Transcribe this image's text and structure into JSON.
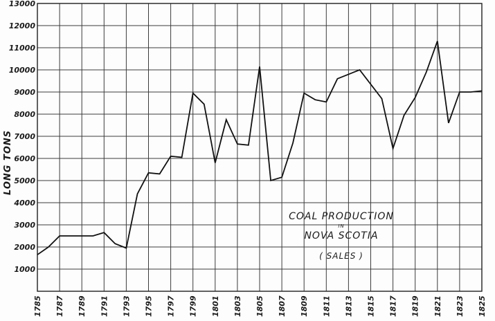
{
  "chart_data": {
    "type": "line",
    "title": "Coal Production in Nova Scotia (Sales)",
    "annotation": {
      "line1": "COAL PRODUCTION",
      "line2": "IN",
      "line3": "NOVA SCOTIA",
      "line4": "( SALES )"
    },
    "xlabel": "",
    "ylabel": "LONG TONS",
    "xlim": [
      1785,
      1825
    ],
    "ylim": [
      0,
      13000
    ],
    "grid": true,
    "legend": null,
    "x_ticks": [
      1785,
      1787,
      1789,
      1791,
      1793,
      1795,
      1797,
      1799,
      1801,
      1803,
      1805,
      1807,
      1809,
      1811,
      1813,
      1815,
      1817,
      1819,
      1821,
      1823,
      1825
    ],
    "y_ticks": [
      1000,
      2000,
      3000,
      4000,
      5000,
      6000,
      7000,
      8000,
      9000,
      10000,
      11000,
      12000,
      13000
    ],
    "series": [
      {
        "name": "Coal Production (Sales), long tons",
        "x": [
          1785,
          1786,
          1787,
          1788,
          1789,
          1790,
          1791,
          1792,
          1793,
          1794,
          1795,
          1796,
          1797,
          1798,
          1799,
          1800,
          1801,
          1802,
          1803,
          1804,
          1805,
          1806,
          1807,
          1808,
          1809,
          1810,
          1811,
          1812,
          1813,
          1814,
          1815,
          1816,
          1817,
          1818,
          1819,
          1820,
          1821,
          1822,
          1823,
          1824,
          1825
        ],
        "values": [
          1650,
          2000,
          2500,
          2500,
          2500,
          2500,
          2650,
          2150,
          1950,
          4400,
          5350,
          5300,
          6100,
          6050,
          8950,
          8450,
          5800,
          7750,
          6650,
          6600,
          10150,
          5000,
          5150,
          6700,
          8950,
          8650,
          8550,
          9600,
          9800,
          10000,
          9350,
          8700,
          6450,
          7950,
          8750,
          9900,
          11300,
          7600,
          9000,
          9000,
          9050
        ]
      }
    ]
  },
  "colors": {
    "paper": "#fdfdfd",
    "ink": "#111111",
    "grid": "#3a3a3a"
  }
}
